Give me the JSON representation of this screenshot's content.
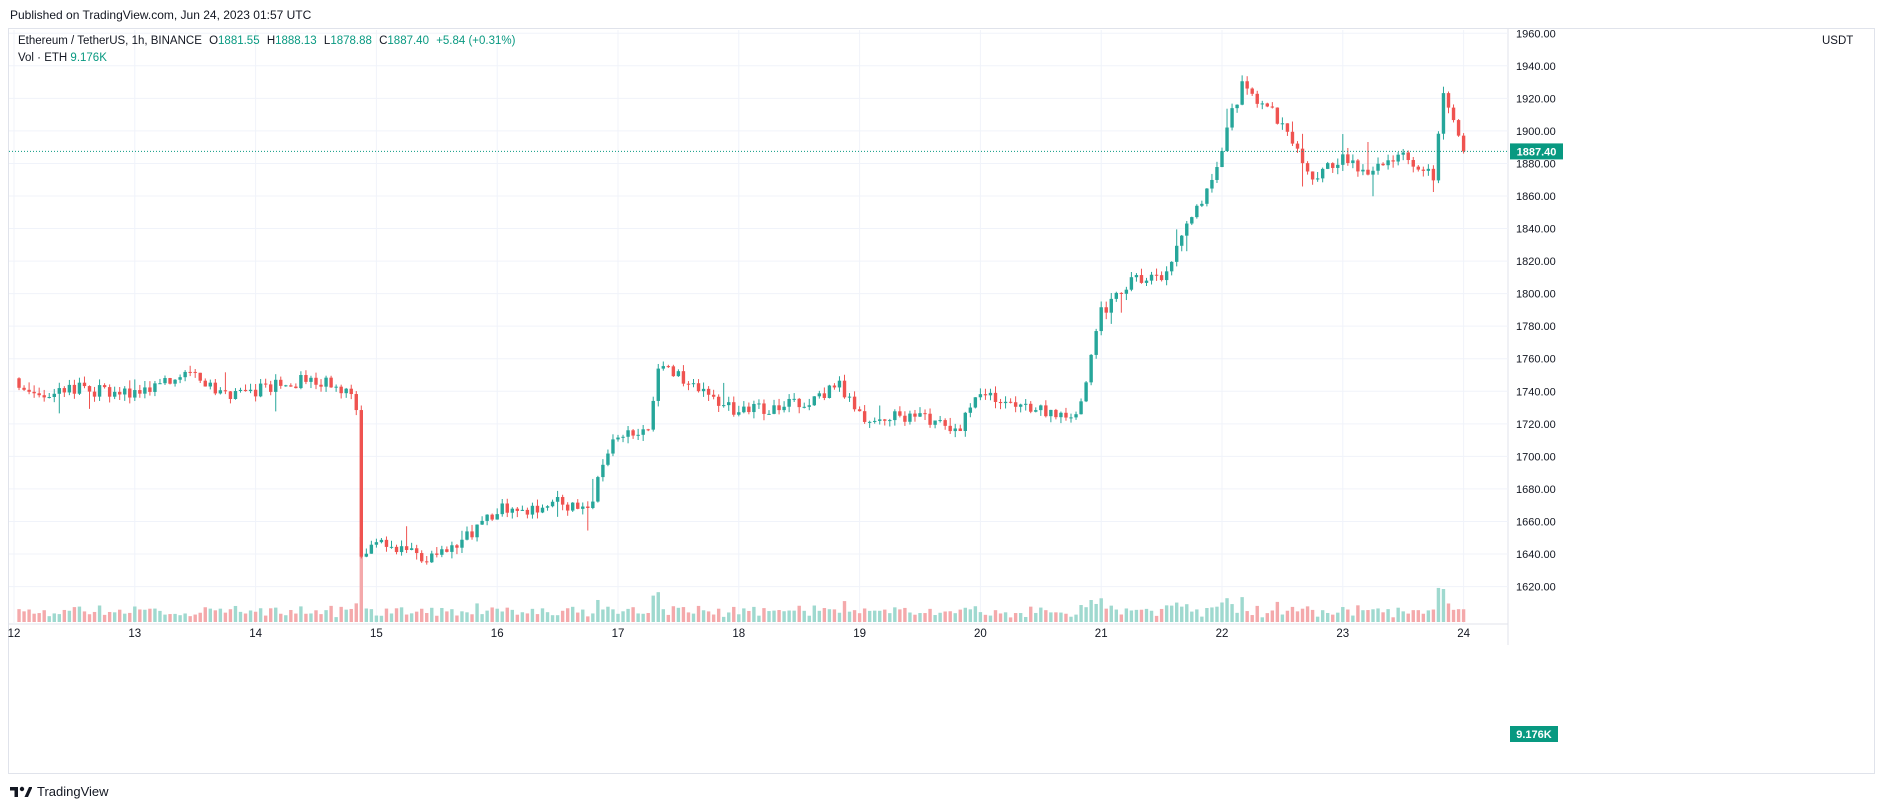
{
  "header": {
    "published": "Published on TradingView.com, Jun 24, 2023 01:57 UTC"
  },
  "legend": {
    "symbol": "Ethereum / TetherUS, 1h, BINANCE",
    "o_label": "O",
    "o_value": "1881.55",
    "h_label": "H",
    "h_value": "1888.13",
    "l_label": "L",
    "l_value": "1878.88",
    "c_label": "C",
    "c_value": "1887.40",
    "change": "+5.84 (+0.31%)"
  },
  "volume_legend": {
    "label": "Vol · ETH",
    "value": "9.176K"
  },
  "footer": {
    "brand": "TradingView"
  },
  "colors": {
    "up": "#26a69a",
    "down": "#ef5350",
    "up_vol": "#9fd9cf",
    "down_vol": "#f4a9ab",
    "grid": "#f0f3fa",
    "last_price": "#089981"
  },
  "chart_data": {
    "type": "candlestick",
    "title": "Ethereum / TetherUS, 1h, BINANCE",
    "ylabel": "USDT",
    "ylim": [
      1597,
      1962
    ],
    "y_ticks": [
      1620,
      1640,
      1660,
      1680,
      1700,
      1720,
      1740,
      1760,
      1780,
      1800,
      1820,
      1840,
      1860,
      1880,
      1900,
      1920,
      1940,
      1960
    ],
    "y_tick_labels": [
      "1620.00",
      "1640.00",
      "1660.00",
      "1680.00",
      "1700.00",
      "1720.00",
      "1740.00",
      "1760.00",
      "1780.00",
      "1800.00",
      "1820.00",
      "1840.00",
      "1860.00",
      "1880.00",
      "1900.00",
      "1920.00",
      "1940.00",
      "1960.00"
    ],
    "x_ticks": [
      "12",
      "13",
      "14",
      "15",
      "16",
      "17",
      "18",
      "19",
      "20",
      "21",
      "22",
      "23",
      "24"
    ],
    "last_price": 1887.4,
    "last_price_label": "1887.40",
    "last_volume_label": "9.176K",
    "grid": true,
    "keypoints": [
      [
        "12 00:00",
        1748
      ],
      [
        "12 06:00",
        1735
      ],
      [
        "12 12:00",
        1742
      ],
      [
        "13 00:00",
        1738
      ],
      [
        "13 06:00",
        1745
      ],
      [
        "13 12:00",
        1750
      ],
      [
        "13 18:00",
        1738
      ],
      [
        "14 00:00",
        1740
      ],
      [
        "14 06:00",
        1745
      ],
      [
        "14 12:00",
        1747
      ],
      [
        "14 18:00",
        1740
      ],
      [
        "14 20:00",
        1730
      ],
      [
        "14 21:00",
        1640
      ],
      [
        "15 00:00",
        1650
      ],
      [
        "15 06:00",
        1642
      ],
      [
        "15 10:00",
        1638
      ],
      [
        "15 18:00",
        1650
      ],
      [
        "16 00:00",
        1668
      ],
      [
        "16 06:00",
        1666
      ],
      [
        "16 12:00",
        1672
      ],
      [
        "16 18:00",
        1668
      ],
      [
        "17 00:00",
        1715
      ],
      [
        "17 06:00",
        1718
      ],
      [
        "17 08:00",
        1757
      ],
      [
        "17 16:00",
        1740
      ],
      [
        "18 00:00",
        1728
      ],
      [
        "18 12:00",
        1732
      ],
      [
        "18 20:00",
        1744
      ],
      [
        "19 00:00",
        1725
      ],
      [
        "19 12:00",
        1724
      ],
      [
        "19 20:00",
        1718
      ],
      [
        "20 00:00",
        1738
      ],
      [
        "20 12:00",
        1728
      ],
      [
        "20 19:00",
        1722
      ],
      [
        "21 00:00",
        1788
      ],
      [
        "21 06:00",
        1808
      ],
      [
        "21 12:00",
        1812
      ],
      [
        "21 18:00",
        1845
      ],
      [
        "21 22:00",
        1870
      ],
      [
        "22 02:00",
        1910
      ],
      [
        "22 04:00",
        1928
      ],
      [
        "22 12:00",
        1905
      ],
      [
        "22 18:00",
        1872
      ],
      [
        "23 00:00",
        1882
      ],
      [
        "23 06:00",
        1875
      ],
      [
        "23 12:00",
        1883
      ],
      [
        "23 18:00",
        1872
      ],
      [
        "23 20:00",
        1922
      ],
      [
        "24 00:00",
        1887.4
      ]
    ]
  }
}
